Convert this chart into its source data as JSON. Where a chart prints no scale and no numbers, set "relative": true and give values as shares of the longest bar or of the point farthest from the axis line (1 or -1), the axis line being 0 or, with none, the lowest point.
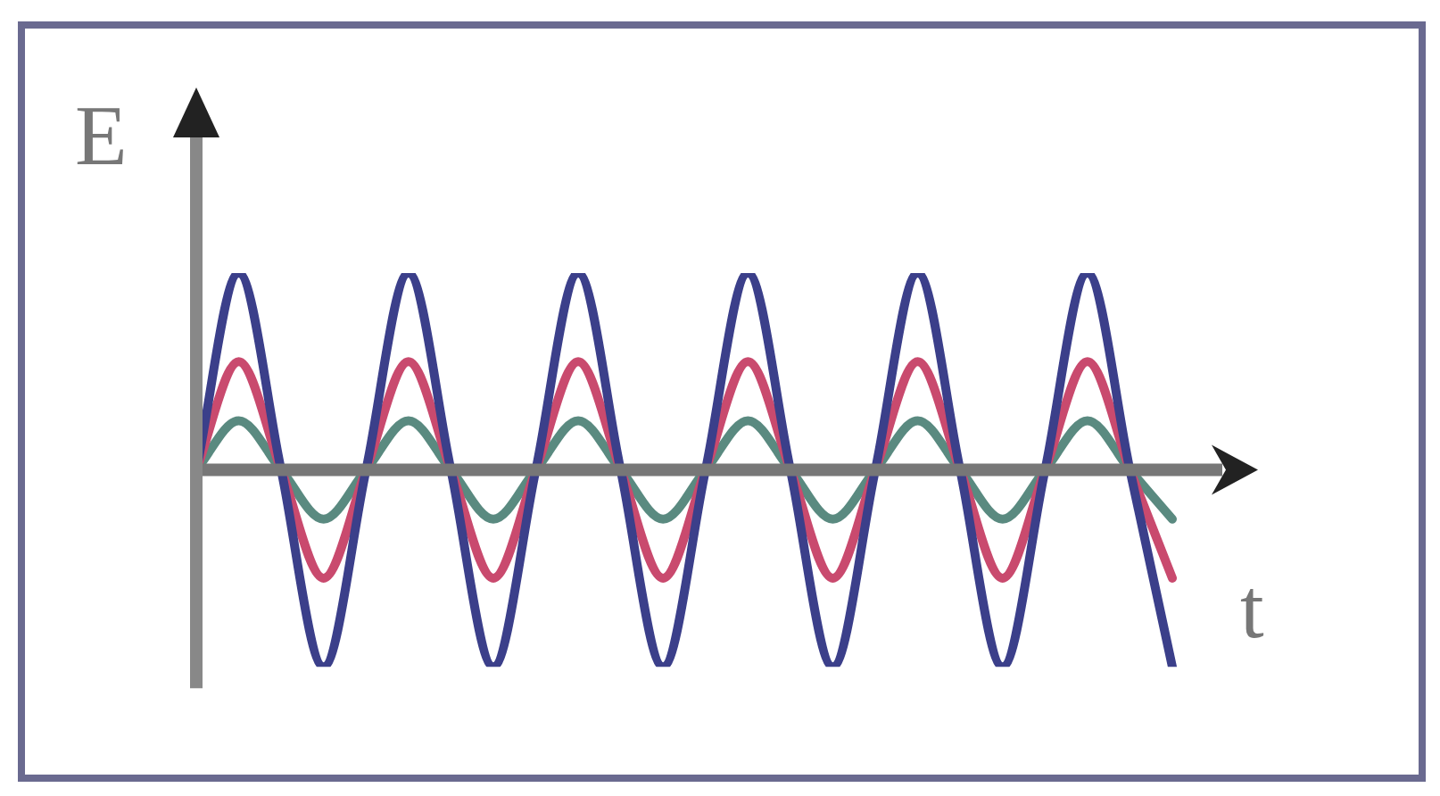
{
  "chart_data": {
    "type": "line",
    "xlabel": "t",
    "ylabel": "E",
    "relative": true,
    "marker": "none",
    "line_style": "solid",
    "legend": false,
    "categories": [
      null,
      null,
      null,
      null,
      null,
      null,
      null,
      null,
      null,
      null,
      null,
      null,
      null,
      null,
      null,
      null,
      null,
      null,
      null,
      null,
      null,
      null,
      null,
      null
    ],
    "series": [
      {
        "color": "#3b3f8a",
        "values": [
          0,
          1,
          0,
          -1,
          0,
          1,
          0,
          -1,
          0,
          1,
          0,
          -1,
          0,
          1,
          0,
          -1,
          0,
          1,
          0,
          -1,
          0,
          1,
          0,
          -1
        ]
      },
      {
        "color": "#c94a6e",
        "values": [
          0,
          0.55,
          0,
          -0.55,
          0,
          0.55,
          0,
          -0.55,
          0,
          0.55,
          0,
          -0.55,
          0,
          0.55,
          0,
          -0.55,
          0,
          0.55,
          0,
          -0.55,
          0,
          0.55,
          0,
          -0.55
        ]
      },
      {
        "color": "#5a8a80",
        "values": [
          0,
          0.25,
          0,
          -0.25,
          0,
          0.25,
          0,
          -0.25,
          0,
          0.25,
          0,
          -0.25,
          0,
          0.25,
          0,
          -0.25,
          0,
          0.25,
          0,
          -0.25,
          0,
          0.25,
          0,
          -0.25
        ]
      }
    ]
  }
}
